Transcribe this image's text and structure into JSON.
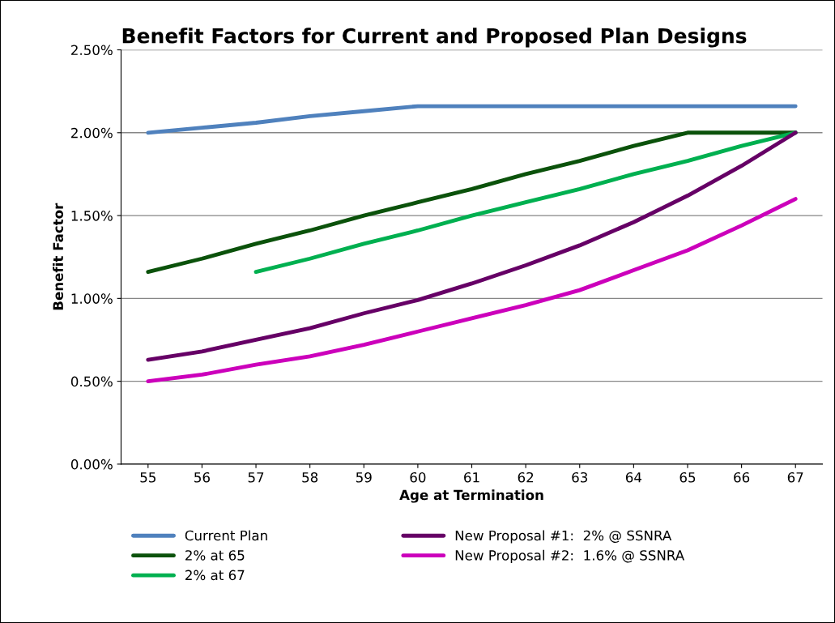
{
  "chart_data": {
    "type": "line",
    "title": "Benefit Factors for Current and Proposed Plan Designs",
    "xlabel": "Age at Termination",
    "ylabel": "Benefit Factor",
    "categories": [
      "55",
      "56",
      "57",
      "58",
      "59",
      "60",
      "61",
      "62",
      "63",
      "64",
      "65",
      "66",
      "67"
    ],
    "series": [
      {
        "name": "Current Plan",
        "color": "#4f81bd",
        "values": [
          2.0,
          2.03,
          2.06,
          2.1,
          2.13,
          2.16,
          2.16,
          2.16,
          2.16,
          2.16,
          2.16,
          2.16,
          2.16
        ]
      },
      {
        "name": "2% at 65",
        "color": "#0b520b",
        "values": [
          1.16,
          1.24,
          1.33,
          1.41,
          1.5,
          1.58,
          1.66,
          1.75,
          1.83,
          1.92,
          2.0,
          2.0,
          2.0
        ]
      },
      {
        "name": "2% at 67",
        "color": "#00b050",
        "values": [
          null,
          null,
          1.16,
          1.24,
          1.33,
          1.41,
          1.5,
          1.58,
          1.66,
          1.75,
          1.83,
          1.92,
          2.0
        ]
      },
      {
        "name": "New Proposal #1:  2% @ SSNRA",
        "color": "#660066",
        "values": [
          0.63,
          0.68,
          0.75,
          0.82,
          0.91,
          0.99,
          1.09,
          1.2,
          1.32,
          1.46,
          1.62,
          1.8,
          2.0
        ]
      },
      {
        "name": "New Proposal #2:  1.6% @ SSNRA",
        "color": "#cc00bb",
        "values": [
          0.5,
          0.54,
          0.6,
          0.65,
          0.72,
          0.8,
          0.88,
          0.96,
          1.05,
          1.17,
          1.29,
          1.44,
          1.6
        ]
      }
    ],
    "ylim": [
      0,
      2.5
    ],
    "yticks": [
      {
        "value": 0,
        "label": "0.00%"
      },
      {
        "value": 0.5,
        "label": "0.50%"
      },
      {
        "value": 1.0,
        "label": "1.00%"
      },
      {
        "value": 1.5,
        "label": "1.50%"
      },
      {
        "value": 2.0,
        "label": "2.00%"
      },
      {
        "value": 2.5,
        "label": "2.50%"
      }
    ],
    "grid": "y",
    "legend": "bottom",
    "marker": "none",
    "line_style": "solid"
  }
}
